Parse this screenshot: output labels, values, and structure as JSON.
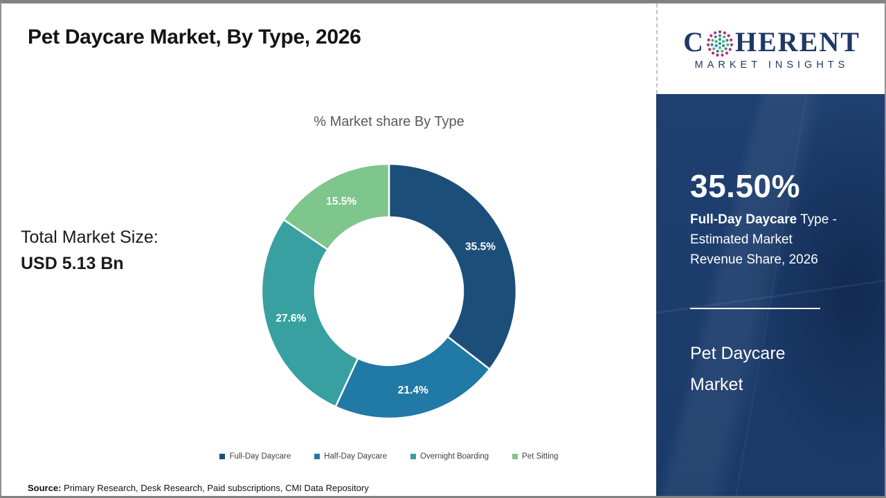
{
  "header": {
    "title": "Pet Daycare Market, By Type, 2026"
  },
  "logo": {
    "word_part1": "C",
    "word_part2": "HERENT",
    "subtitle": "MARKET INSIGHTS",
    "o_icon_colors": {
      "outer_ring": "#c0267e",
      "teal": "#1d8fa5",
      "green": "#58b35a"
    }
  },
  "left_stat": {
    "label": "Total Market Size:",
    "value": "USD 5.13 Bn"
  },
  "chart_data": {
    "type": "pie",
    "subtype": "donut",
    "title": "% Market share By Type",
    "categories": [
      "Full-Day Daycare",
      "Half-Day Daycare",
      "Overnight Boarding",
      "Pet Sitting"
    ],
    "values": [
      35.5,
      21.4,
      27.6,
      15.5
    ],
    "data_labels": [
      "35.5%",
      "21.4%",
      "27.6%",
      "15.5%"
    ],
    "colors": [
      "#1c4e7a",
      "#2179a6",
      "#38a0a0",
      "#7fc68d"
    ],
    "start_angle_deg": 0,
    "direction": "clockwise",
    "legend_position": "bottom"
  },
  "sidebar": {
    "stat_value": "35.50%",
    "stat_label_bold": "Full-Day Daycare",
    "stat_label_rest": " Type - Estimated Market Revenue Share, 2026",
    "panel_title": "Pet Daycare Market",
    "background_color": "#1c3e6e"
  },
  "footer": {
    "source_label": "Source:",
    "source_text": " Primary Research, Desk Research, Paid subscriptions, CMI Data Repository"
  }
}
